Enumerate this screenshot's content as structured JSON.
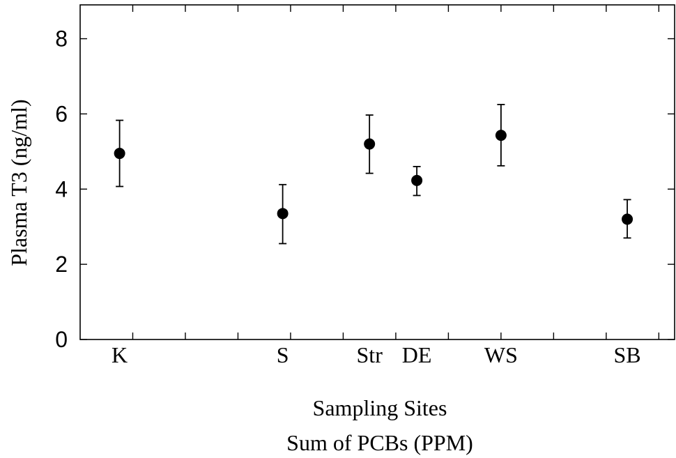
{
  "chart_data": {
    "type": "scatter",
    "xlabel": "Sampling Sites",
    "xlabel2": "Sum of PCBs (PPM)",
    "ylabel": "Plasma T3  (ng/ml)",
    "ylim": [
      0,
      8.9
    ],
    "yticks": [
      0,
      2,
      4,
      6,
      8
    ],
    "ytick_labels": [
      "0",
      "2",
      "4",
      "6",
      "8"
    ],
    "xlim": [
      0,
      11.3
    ],
    "xticks": [
      1,
      2,
      3,
      4,
      5,
      6,
      7,
      8,
      9,
      10,
      11
    ],
    "categories": [
      "K",
      "S",
      "Str",
      "DE",
      "WS",
      "SB"
    ],
    "x": [
      0.75,
      3.85,
      5.5,
      6.4,
      8.0,
      10.4
    ],
    "values": [
      4.95,
      3.35,
      5.2,
      4.23,
      5.43,
      3.2
    ],
    "error_low": [
      4.07,
      2.55,
      4.42,
      3.83,
      4.62,
      2.7
    ],
    "error_high": [
      5.83,
      4.12,
      5.97,
      4.6,
      6.25,
      3.72
    ],
    "marker": "filled-circle",
    "color": "#000000",
    "grid": false,
    "legend": "none"
  }
}
